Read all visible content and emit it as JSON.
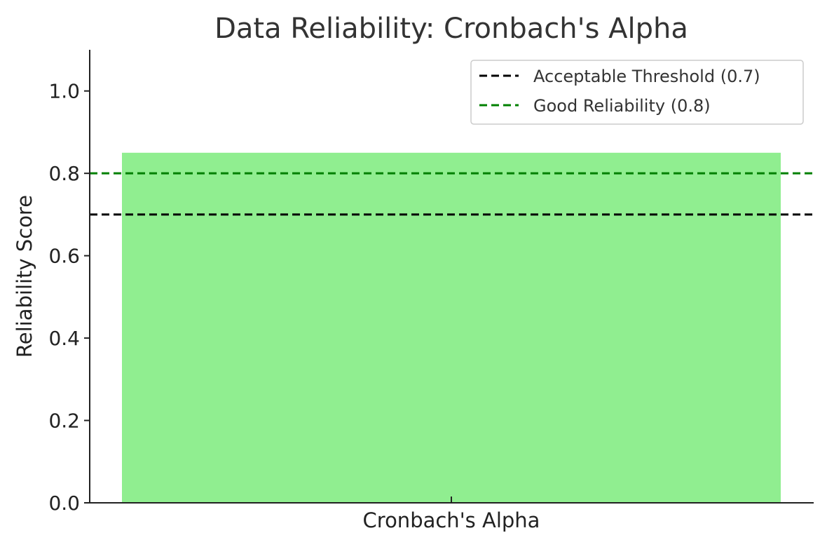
{
  "chart_data": {
    "type": "bar",
    "title": "Data Reliability: Cronbach's Alpha",
    "xlabel": "",
    "ylabel": "Reliability Score",
    "categories": [
      "Cronbach's Alpha"
    ],
    "values": [
      0.85
    ],
    "bar_color": "#90ee90",
    "ylim": [
      0,
      1.1
    ],
    "yticks": [
      0.0,
      0.2,
      0.4,
      0.6,
      0.8,
      1.0
    ],
    "ytick_labels": [
      "0.0",
      "0.2",
      "0.4",
      "0.6",
      "0.8",
      "1.0"
    ],
    "grid": false,
    "legend_position": "top-right",
    "reference_lines": [
      {
        "label": "Acceptable Threshold (0.7)",
        "value": 0.7,
        "color": "#000000",
        "style": "dashed"
      },
      {
        "label": "Good Reliability (0.8)",
        "value": 0.8,
        "color": "#008000",
        "style": "dashed"
      }
    ]
  }
}
